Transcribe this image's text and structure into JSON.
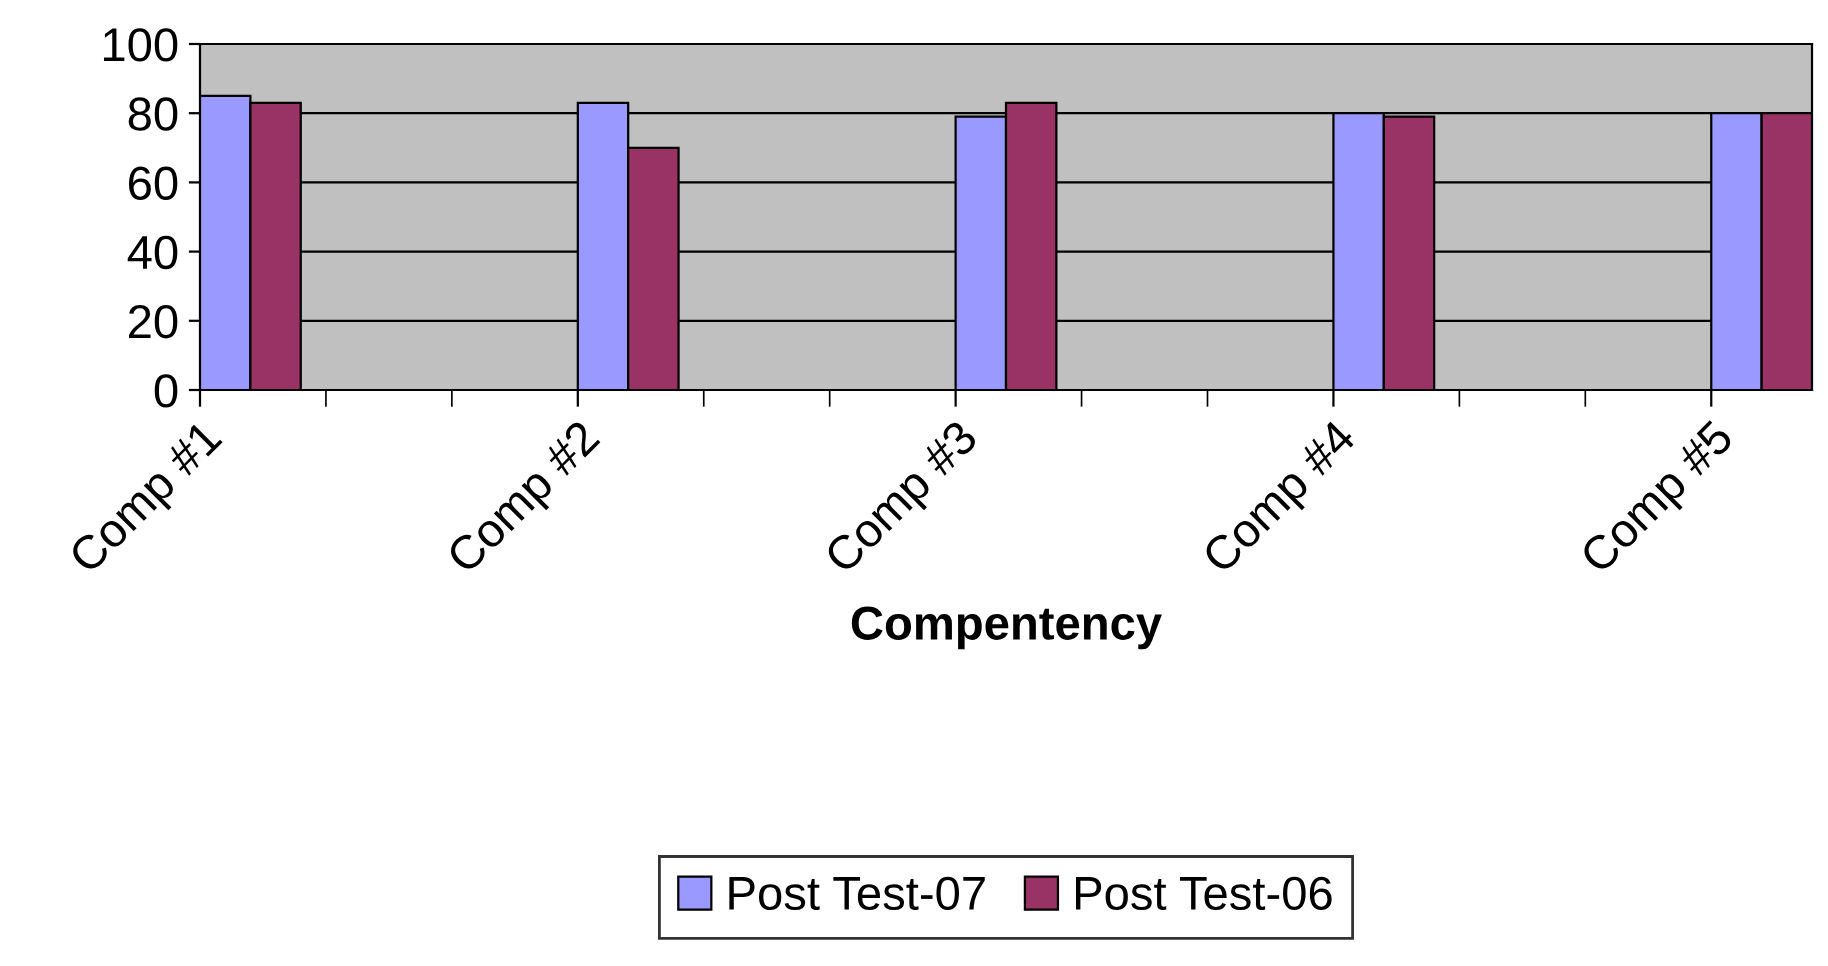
{
  "chart_data": {
    "type": "bar",
    "xlabel": "Compentency",
    "categories": [
      "Comp #1",
      "Comp #2",
      "Comp #3",
      "Comp #4",
      "Comp #5"
    ],
    "series": [
      {
        "name": "Post Test-07",
        "color": "#9999ff",
        "values": [
          85,
          83,
          79,
          80,
          80
        ]
      },
      {
        "name": "Post Test-06",
        "color": "#993366",
        "values": [
          83,
          70,
          83,
          79,
          80
        ]
      }
    ],
    "ylim": [
      0,
      100
    ],
    "yticks": [
      0,
      20,
      40,
      60,
      80,
      100
    ],
    "grid": "y",
    "legend": "bottom"
  }
}
